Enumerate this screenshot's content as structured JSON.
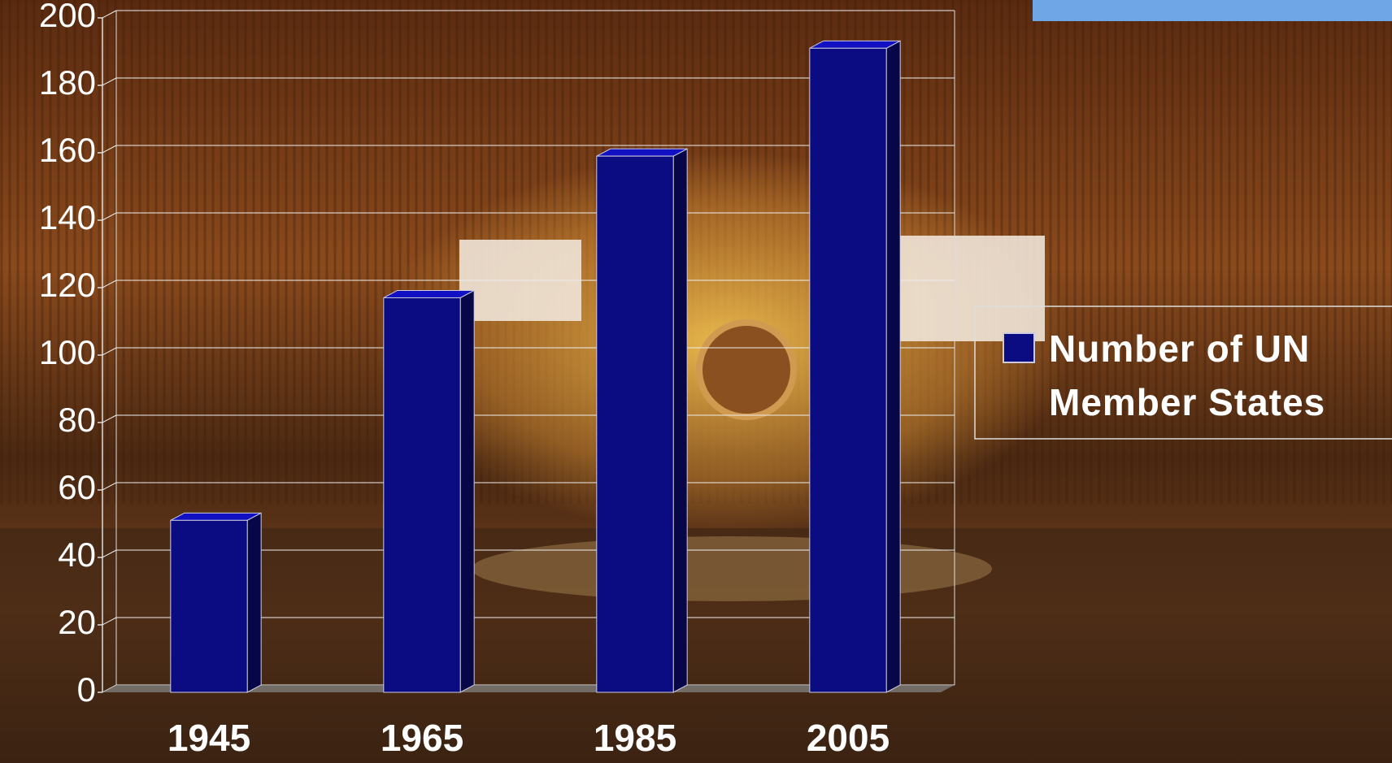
{
  "chart_data": {
    "type": "bar",
    "categories": [
      "1945",
      "1965",
      "1985",
      "2005"
    ],
    "series": [
      {
        "name": "Number of UN Member States",
        "color": "#0b0b82",
        "values": [
          51,
          117,
          159,
          191
        ]
      }
    ],
    "ylim": [
      0,
      200
    ],
    "yticks": [
      0,
      20,
      40,
      60,
      80,
      100,
      120,
      140,
      160,
      180,
      200
    ],
    "grid": true,
    "legend": "right"
  }
}
